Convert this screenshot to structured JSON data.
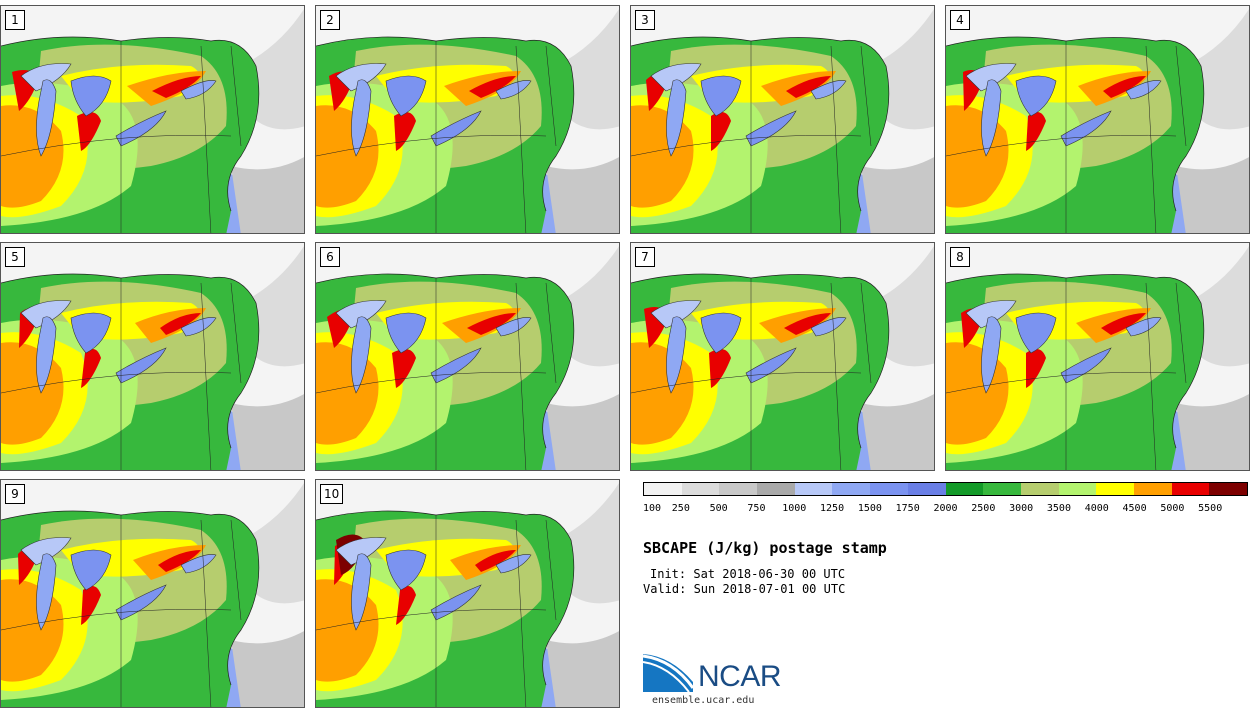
{
  "product": {
    "title": "SBCAPE (J/kg) postage stamp",
    "init": "Init: Sat 2018-06-30 00 UTC",
    "valid": "Valid: Sun 2018-07-01 00 UTC"
  },
  "members": [
    "1",
    "2",
    "3",
    "4",
    "5",
    "6",
    "7",
    "8",
    "9",
    "10"
  ],
  "colorbar": {
    "labels": [
      "100",
      "250",
      "500",
      "750",
      "1000",
      "1250",
      "1500",
      "1750",
      "2000",
      "2500",
      "3000",
      "3500",
      "4000",
      "4500",
      "5000",
      "5500"
    ],
    "colors": [
      "#f2f2f2",
      "#dcdcdc",
      "#c8c8c8",
      "#a9a9a9",
      "#b7c8f7",
      "#8fa8f3",
      "#7b93f0",
      "#6a7fe6",
      "#139a28",
      "#37b83d",
      "#b6cd6e",
      "#b3f36e",
      "#ffff00",
      "#ff9f00",
      "#e80000",
      "#7d0000"
    ]
  },
  "logo": {
    "name": "NCAR",
    "url": "ensemble.ucar.edu"
  }
}
